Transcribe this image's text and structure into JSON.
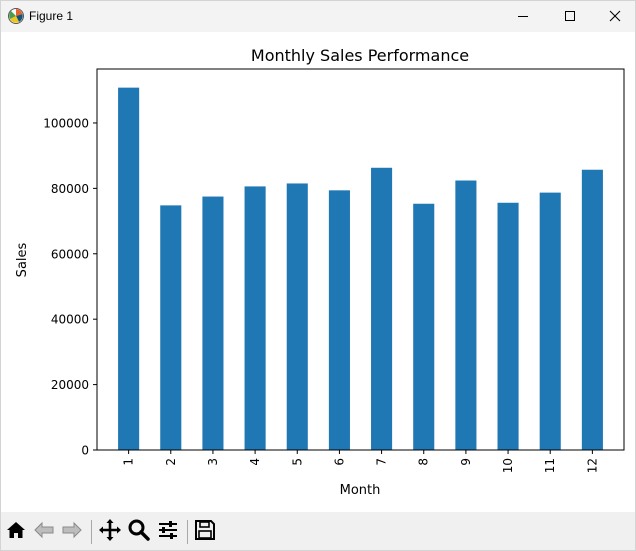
{
  "window": {
    "title": "Figure 1"
  },
  "toolbar": {
    "buttons": [
      {
        "name": "home-icon"
      },
      {
        "name": "back-icon"
      },
      {
        "name": "forward-icon"
      },
      {
        "name": "pan-icon"
      },
      {
        "name": "zoom-icon"
      },
      {
        "name": "configure-subplots-icon"
      },
      {
        "name": "save-icon"
      }
    ]
  },
  "chart_data": {
    "type": "bar",
    "title": "Monthly Sales Performance",
    "xlabel": "Month",
    "ylabel": "Sales",
    "categories": [
      "1",
      "2",
      "3",
      "4",
      "5",
      "6",
      "7",
      "8",
      "9",
      "10",
      "11",
      "12"
    ],
    "values": [
      110800,
      74800,
      77500,
      80600,
      81500,
      79400,
      86300,
      75300,
      82400,
      75600,
      78700,
      85700
    ],
    "ylim": [
      0,
      116500
    ],
    "yticks": [
      0,
      20000,
      40000,
      60000,
      80000,
      100000
    ],
    "ytick_labels": [
      "0",
      "20000",
      "40000",
      "60000",
      "80000",
      "100000"
    ],
    "bar_color": "#1f77b4",
    "grid": false,
    "legend": "none"
  }
}
